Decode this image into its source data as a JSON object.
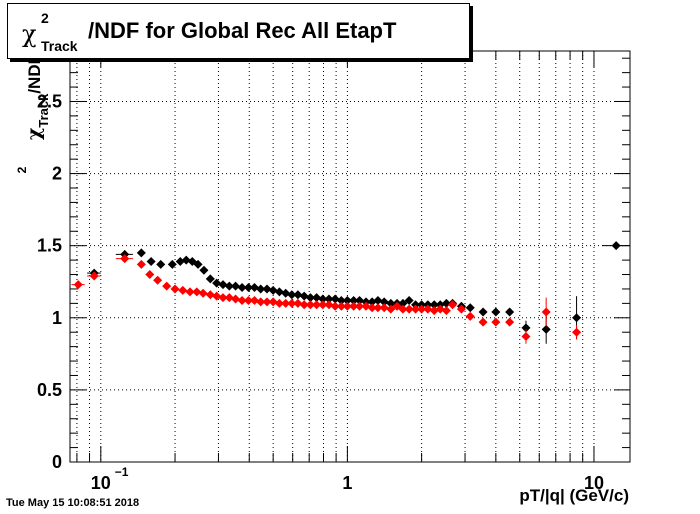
{
  "title": {
    "symbol": "χ",
    "sup": "2",
    "sub": "Track",
    "text": "/NDF for Global Rec All EtapT"
  },
  "timestamp": "Tue May 15 10:08:51 2018",
  "chart_data": {
    "type": "scatter",
    "xscale": "log",
    "xlim": [
      0.075,
      14
    ],
    "ylim": [
      0,
      2.85
    ],
    "grid": true,
    "xlabel": "pT/|q| (GeV/c)",
    "ylabel": {
      "symbol": "χ",
      "sup": "2",
      "sub": "Track",
      "text": "/NDF"
    },
    "xtick_labels": [
      {
        "x": 0.1,
        "base": "10",
        "exp": "−1"
      },
      {
        "x": 1,
        "base": "1",
        "exp": ""
      },
      {
        "x": 10,
        "base": "10",
        "exp": ""
      }
    ],
    "ytick_labels": [
      {
        "y": 0,
        "label": "0"
      },
      {
        "y": 0.5,
        "label": "0.5"
      },
      {
        "y": 1,
        "label": "1"
      },
      {
        "y": 1.5,
        "label": "1.5"
      },
      {
        "y": 2,
        "label": "2"
      },
      {
        "y": 2.5,
        "label": "2.5"
      }
    ],
    "series": [
      {
        "color": "#000000",
        "points": [
          {
            "x": 0.094,
            "y": 1.31,
            "xlo": 0.088,
            "xhi": 0.1
          },
          {
            "x": 0.125,
            "y": 1.44,
            "xlo": 0.115,
            "xhi": 0.135
          },
          {
            "x": 0.146,
            "y": 1.45
          },
          {
            "x": 0.16,
            "y": 1.39
          },
          {
            "x": 0.175,
            "y": 1.37
          },
          {
            "x": 0.195,
            "y": 1.37
          },
          {
            "x": 0.21,
            "y": 1.39
          },
          {
            "x": 0.222,
            "y": 1.4
          },
          {
            "x": 0.235,
            "y": 1.39
          },
          {
            "x": 0.248,
            "y": 1.37
          },
          {
            "x": 0.262,
            "y": 1.33
          },
          {
            "x": 0.278,
            "y": 1.27
          },
          {
            "x": 0.295,
            "y": 1.24
          },
          {
            "x": 0.313,
            "y": 1.23
          },
          {
            "x": 0.332,
            "y": 1.22
          },
          {
            "x": 0.352,
            "y": 1.22
          },
          {
            "x": 0.374,
            "y": 1.21
          },
          {
            "x": 0.397,
            "y": 1.21
          },
          {
            "x": 0.42,
            "y": 1.21
          },
          {
            "x": 0.445,
            "y": 1.2
          },
          {
            "x": 0.472,
            "y": 1.2
          },
          {
            "x": 0.5,
            "y": 1.19
          },
          {
            "x": 0.53,
            "y": 1.18
          },
          {
            "x": 0.562,
            "y": 1.17
          },
          {
            "x": 0.595,
            "y": 1.16
          },
          {
            "x": 0.63,
            "y": 1.16
          },
          {
            "x": 0.668,
            "y": 1.15
          },
          {
            "x": 0.708,
            "y": 1.14
          },
          {
            "x": 0.75,
            "y": 1.14
          },
          {
            "x": 0.795,
            "y": 1.13
          },
          {
            "x": 0.842,
            "y": 1.13
          },
          {
            "x": 0.892,
            "y": 1.13
          },
          {
            "x": 0.945,
            "y": 1.12
          },
          {
            "x": 1.0,
            "y": 1.12
          },
          {
            "x": 1.06,
            "y": 1.12
          },
          {
            "x": 1.12,
            "y": 1.12
          },
          {
            "x": 1.19,
            "y": 1.11
          },
          {
            "x": 1.26,
            "y": 1.11
          },
          {
            "x": 1.33,
            "y": 1.12
          },
          {
            "x": 1.41,
            "y": 1.11
          },
          {
            "x": 1.5,
            "y": 1.1
          },
          {
            "x": 1.59,
            "y": 1.1
          },
          {
            "x": 1.68,
            "y": 1.1
          },
          {
            "x": 1.78,
            "y": 1.12
          },
          {
            "x": 1.89,
            "y": 1.09
          },
          {
            "x": 2.0,
            "y": 1.09
          },
          {
            "x": 2.12,
            "y": 1.09
          },
          {
            "x": 2.25,
            "y": 1.09
          },
          {
            "x": 2.38,
            "y": 1.09
          },
          {
            "x": 2.52,
            "y": 1.1
          },
          {
            "x": 2.67,
            "y": 1.1
          },
          {
            "x": 2.9,
            "y": 1.08
          },
          {
            "x": 3.15,
            "y": 1.07
          },
          {
            "x": 3.55,
            "y": 1.04
          },
          {
            "x": 4.0,
            "y": 1.04
          },
          {
            "x": 4.55,
            "y": 1.04
          },
          {
            "x": 5.3,
            "y": 0.93,
            "err": 0.05
          },
          {
            "x": 6.4,
            "y": 0.92,
            "err": 0.1
          },
          {
            "x": 8.5,
            "y": 1.0,
            "err": 0.15
          },
          {
            "x": 12.3,
            "y": 1.5,
            "xlo": 10.8,
            "xhi": 14
          }
        ]
      },
      {
        "color": "#ff0000",
        "points": [
          {
            "x": 0.081,
            "y": 1.23,
            "xlo": 0.076,
            "xhi": 0.086
          },
          {
            "x": 0.094,
            "y": 1.29,
            "xlo": 0.088,
            "xhi": 0.1
          },
          {
            "x": 0.125,
            "y": 1.41,
            "xlo": 0.115,
            "xhi": 0.135
          },
          {
            "x": 0.146,
            "y": 1.37
          },
          {
            "x": 0.158,
            "y": 1.3
          },
          {
            "x": 0.17,
            "y": 1.26
          },
          {
            "x": 0.185,
            "y": 1.22
          },
          {
            "x": 0.2,
            "y": 1.2
          },
          {
            "x": 0.215,
            "y": 1.19
          },
          {
            "x": 0.23,
            "y": 1.18
          },
          {
            "x": 0.245,
            "y": 1.18
          },
          {
            "x": 0.26,
            "y": 1.17
          },
          {
            "x": 0.278,
            "y": 1.16
          },
          {
            "x": 0.295,
            "y": 1.15
          },
          {
            "x": 0.313,
            "y": 1.14
          },
          {
            "x": 0.332,
            "y": 1.14
          },
          {
            "x": 0.352,
            "y": 1.13
          },
          {
            "x": 0.374,
            "y": 1.12
          },
          {
            "x": 0.397,
            "y": 1.12
          },
          {
            "x": 0.42,
            "y": 1.12
          },
          {
            "x": 0.445,
            "y": 1.11
          },
          {
            "x": 0.472,
            "y": 1.11
          },
          {
            "x": 0.5,
            "y": 1.11
          },
          {
            "x": 0.53,
            "y": 1.1
          },
          {
            "x": 0.562,
            "y": 1.1
          },
          {
            "x": 0.595,
            "y": 1.1
          },
          {
            "x": 0.63,
            "y": 1.1
          },
          {
            "x": 0.668,
            "y": 1.09
          },
          {
            "x": 0.708,
            "y": 1.09
          },
          {
            "x": 0.75,
            "y": 1.09
          },
          {
            "x": 0.795,
            "y": 1.09
          },
          {
            "x": 0.842,
            "y": 1.09
          },
          {
            "x": 0.892,
            "y": 1.08
          },
          {
            "x": 0.945,
            "y": 1.08
          },
          {
            "x": 1.0,
            "y": 1.08
          },
          {
            "x": 1.06,
            "y": 1.08
          },
          {
            "x": 1.12,
            "y": 1.08
          },
          {
            "x": 1.19,
            "y": 1.08
          },
          {
            "x": 1.26,
            "y": 1.07
          },
          {
            "x": 1.33,
            "y": 1.07
          },
          {
            "x": 1.41,
            "y": 1.07
          },
          {
            "x": 1.5,
            "y": 1.06
          },
          {
            "x": 1.59,
            "y": 1.08
          },
          {
            "x": 1.68,
            "y": 1.06
          },
          {
            "x": 1.78,
            "y": 1.06
          },
          {
            "x": 1.89,
            "y": 1.06
          },
          {
            "x": 2.0,
            "y": 1.06
          },
          {
            "x": 2.12,
            "y": 1.06
          },
          {
            "x": 2.25,
            "y": 1.05
          },
          {
            "x": 2.38,
            "y": 1.06
          },
          {
            "x": 2.52,
            "y": 1.05
          },
          {
            "x": 2.67,
            "y": 1.09
          },
          {
            "x": 2.9,
            "y": 1.06
          },
          {
            "x": 3.15,
            "y": 1.01
          },
          {
            "x": 3.55,
            "y": 0.97
          },
          {
            "x": 4.0,
            "y": 0.97
          },
          {
            "x": 4.55,
            "y": 0.97
          },
          {
            "x": 5.3,
            "y": 0.87,
            "err": 0.05
          },
          {
            "x": 6.4,
            "y": 1.04,
            "err": 0.1
          },
          {
            "x": 8.5,
            "y": 0.9,
            "err": 0.05
          }
        ]
      }
    ]
  }
}
